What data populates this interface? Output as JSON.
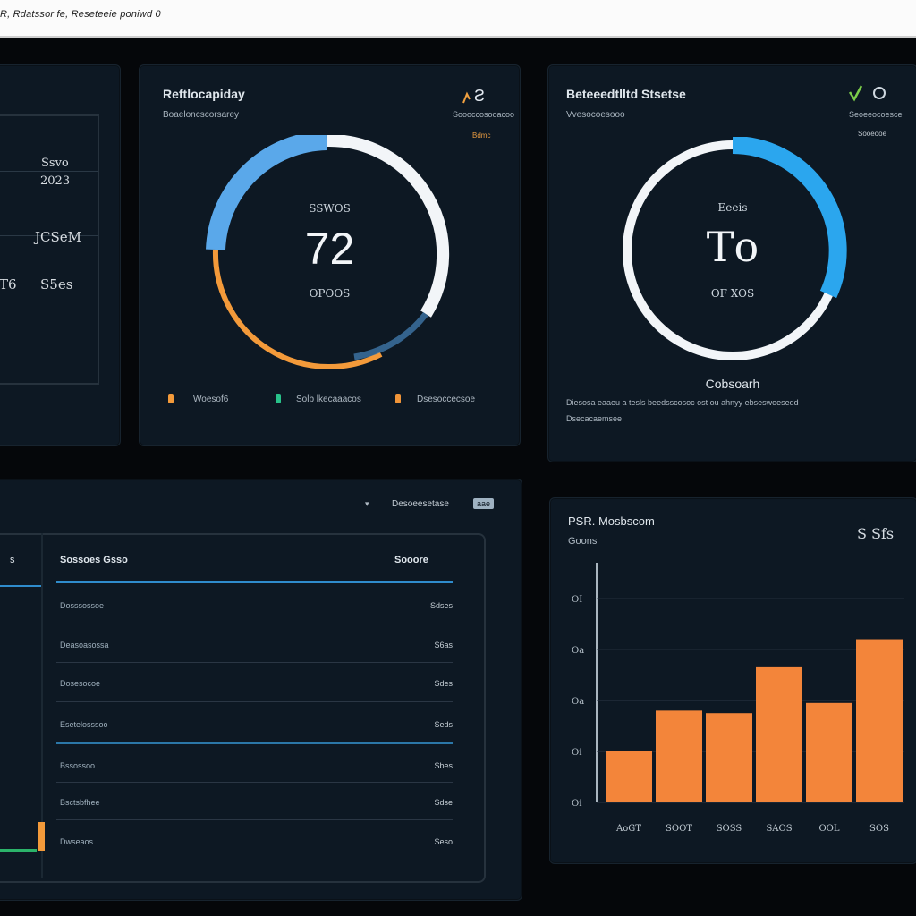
{
  "window": {
    "title": "R, Rdatssor fe, Reseteeie poniwd 0"
  },
  "panel_a": {
    "values": [
      "Ssvo",
      "2023",
      "JCSeM",
      "T6",
      "S5es"
    ]
  },
  "gauge_left": {
    "title": "Reftlocapiday",
    "subtitle": "Boaeloncscorsarey",
    "corner_icon_label": "Ƨ",
    "corner_sub": "Soooccosooacoo",
    "corner_tag": "Bdmc",
    "top_label": "SSWOS",
    "value": "72",
    "bottom_label": "OPOOS",
    "legend": [
      {
        "label": "Woesof6",
        "color": "#f39a3a"
      },
      {
        "label": "Solb lkecaaacos",
        "color": "#28c28a"
      },
      {
        "label": "Dsesoccecsoe",
        "color": "#f09438"
      }
    ],
    "colors": {
      "blue": "#5aa8ea",
      "orange": "#f39a3a",
      "white": "#f2f5f8"
    }
  },
  "gauge_right": {
    "title": "Beteeedtlltd Stsetse",
    "subtitle": "Vvesocoesooo",
    "corner_sub": "Seoeeocoesce",
    "corner_tag": "Sooeooe",
    "top_label": "Eeeis",
    "value": "То",
    "bottom_label": "OF XOS",
    "caption": "Cobsoarh",
    "desc1": "Diesosa eaaeu a tesls beedsscosoc ost ou ahnyy ebseswoesedd",
    "desc2": "Dsecacaemsee",
    "colors": {
      "blue": "#2ba6ee",
      "white": "#f2f5f8"
    }
  },
  "table": {
    "header_dropdown": "Desoeesetase",
    "header_tag": "aae",
    "col_a": "Sossoes Gsso",
    "col_b": "Sooore",
    "left_col_head": "s",
    "rows": [
      {
        "label": "Dosssossoe",
        "value": "Sdses"
      },
      {
        "label": "Deasoasossa",
        "value": "S6as"
      },
      {
        "label": "Dosesocoe",
        "value": "Sdes"
      },
      {
        "label": "Esetelosssoo",
        "value": "Seds"
      },
      {
        "label": "Bssossoo",
        "value": "Sbes"
      },
      {
        "label": "Bsctsbfhee",
        "value": "Sdse"
      },
      {
        "label": "Dwseaos",
        "value": "Seso"
      }
    ]
  },
  "bar_chart": {
    "title": "PSR. Mosbscom",
    "subtitle": "Goons",
    "corner": "S Sfs",
    "bar_color": "#f3853a"
  },
  "chart_data": {
    "type": "bar",
    "title": "PSR. Mosbscom",
    "categories": [
      "AoGT",
      "SOOT",
      "SOSS",
      "SAOS",
      "OOL",
      "SOS"
    ],
    "values": [
      1.0,
      1.8,
      1.75,
      2.65,
      1.95,
      3.2
    ],
    "ytick_labels": [
      "OI",
      "Oa",
      "Oa",
      "Oi",
      "Oi"
    ],
    "ylim": [
      0,
      4.7
    ],
    "grid": true
  }
}
